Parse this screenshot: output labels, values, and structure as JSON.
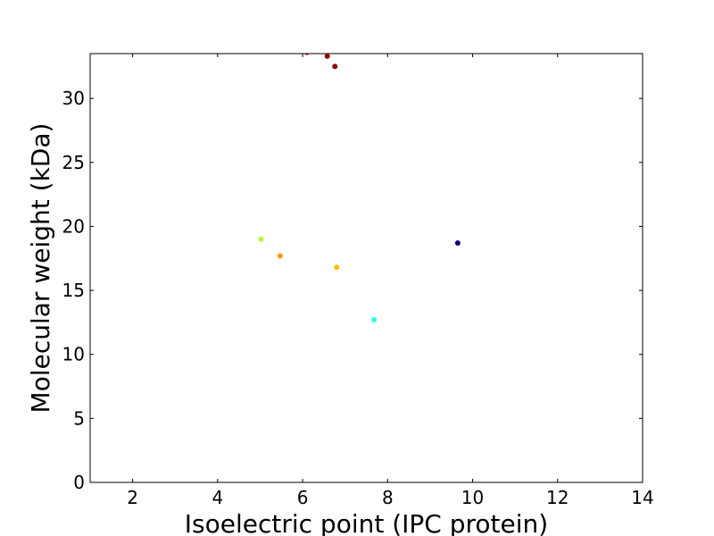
{
  "chart_data": {
    "type": "scatter",
    "title": "",
    "xlabel": "Isoelectric point (IPC  protein)",
    "ylabel": "Molecular weight (kDa)",
    "xlim": [
      1,
      14
    ],
    "ylim": [
      0,
      33.5
    ],
    "xticks": [
      2,
      4,
      6,
      8,
      10,
      12,
      14
    ],
    "yticks": [
      0,
      5,
      10,
      15,
      20,
      25,
      30
    ],
    "grid": false,
    "points": [
      {
        "x": 6.1,
        "y": 33.6,
        "color": "#8b0000"
      },
      {
        "x": 6.58,
        "y": 33.3,
        "color": "#8b0000"
      },
      {
        "x": 6.76,
        "y": 32.5,
        "color": "#8b0000"
      },
      {
        "x": 5.02,
        "y": 19.0,
        "color": "#b3ff33"
      },
      {
        "x": 5.47,
        "y": 17.7,
        "color": "#ff9900"
      },
      {
        "x": 6.8,
        "y": 16.8,
        "color": "#ffbf00"
      },
      {
        "x": 7.68,
        "y": 12.7,
        "color": "#26fff0"
      },
      {
        "x": 9.65,
        "y": 18.7,
        "color": "#00007f"
      }
    ]
  }
}
